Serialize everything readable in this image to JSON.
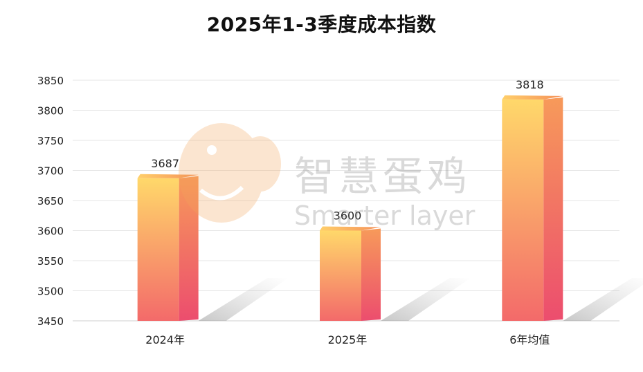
{
  "chart_data": {
    "type": "bar",
    "title": "2025年1-3季度成本指数",
    "categories": [
      "2024年",
      "2025年",
      "6年均值"
    ],
    "values": [
      3687,
      3600,
      3818
    ],
    "ylim": [
      3450,
      3850
    ],
    "yticks": [
      3450,
      3500,
      3550,
      3600,
      3650,
      3700,
      3750,
      3800,
      3850
    ],
    "grid": true,
    "legend": "none",
    "colors": {
      "bar_top": "#ffd86a",
      "bar_bottom": "#f36a6a",
      "bar_side": "#ef5570",
      "grid": "#e6e6e6"
    }
  },
  "watermark": {
    "text_cn": "智慧蛋鸡",
    "text_en": "Smarter layer"
  }
}
